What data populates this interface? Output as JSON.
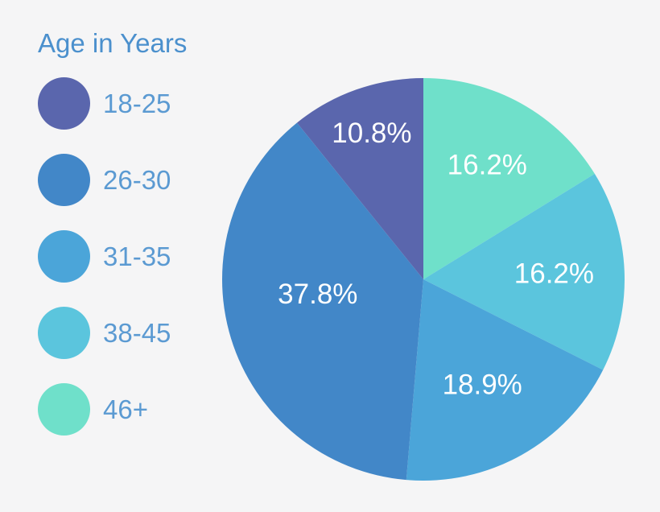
{
  "figure": {
    "background": "#f5f5f6"
  },
  "chart_data": {
    "type": "pie",
    "title": "Age in Years",
    "legend_position": "left",
    "direction": "counter-clockwise",
    "start_angle_deg": 0,
    "title_color": "#4b90cd",
    "legend_text_color": "#5b9ad2",
    "slice_label_color": "#ffffff",
    "slices": [
      {
        "label": "18-25",
        "value": 10.8,
        "pct_label": "10.8%",
        "color": "#5a66ad"
      },
      {
        "label": "26-30",
        "value": 37.8,
        "pct_label": "37.8%",
        "color": "#4287c8"
      },
      {
        "label": "31-35",
        "value": 18.9,
        "pct_label": "18.9%",
        "color": "#4ba5d9"
      },
      {
        "label": "38-45",
        "value": 16.2,
        "pct_label": "16.2%",
        "color": "#5bc5dd"
      },
      {
        "label": "46+",
        "value": 16.2,
        "pct_label": "16.2%",
        "color": "#6fe0ca"
      }
    ]
  }
}
